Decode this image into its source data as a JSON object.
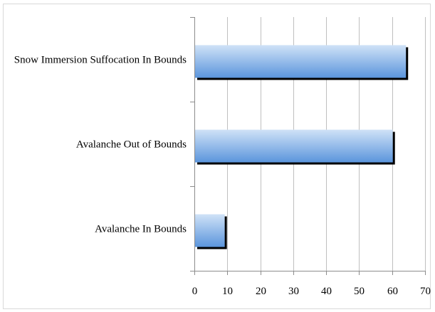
{
  "chart_data": {
    "type": "bar",
    "orientation": "horizontal",
    "categories": [
      "Snow Immersion Suffocation In Bounds",
      "Avalanche Out of Bounds",
      "Avalanche In Bounds"
    ],
    "values": [
      64,
      60,
      9
    ],
    "xlim": [
      0,
      70
    ],
    "xticks": [
      "0",
      "10",
      "20",
      "30",
      "40",
      "50",
      "60",
      "70"
    ],
    "title": "",
    "xlabel": "",
    "ylabel": "",
    "grid": "vertical",
    "legend": "none",
    "colors": {
      "bar_top": "#cfe2f7",
      "bar_bottom": "#5b95dc",
      "bar_shadow": "#000000",
      "grid": "#bfbfbf",
      "axis": "#8c8c8c"
    }
  }
}
